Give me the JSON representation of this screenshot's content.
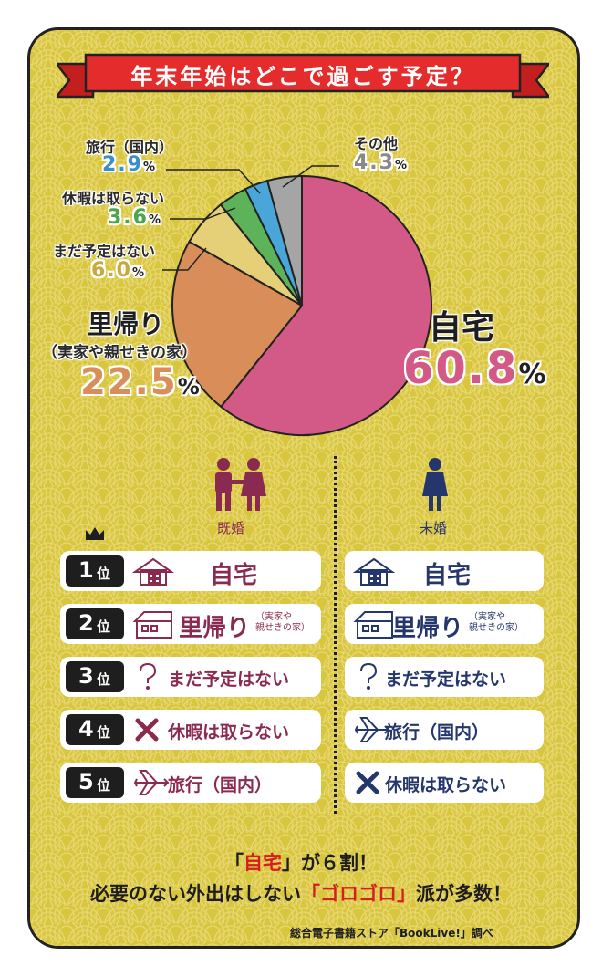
{
  "title": "年末年始はどこで過ごす予定？",
  "colors": {
    "background": "#d9c63f",
    "banner": "#e52c2c",
    "home": "#d35a87",
    "return_home": "#d98e5a",
    "undecided": "#e5cf77",
    "no_vacation": "#5cb35a",
    "domestic_travel": "#4aa6d8",
    "other": "#a5a5a5",
    "married": "#8b2a50",
    "single": "#24366b",
    "accent_red": "#d61e1e"
  },
  "chart_data": {
    "type": "pie",
    "title": "年末年始はどこで過ごす予定？",
    "unit": "%",
    "slices": [
      {
        "label": "自宅",
        "value": 60.8,
        "color": "#d35a87"
      },
      {
        "label": "里帰り（実家や親せきの家）",
        "value": 22.5,
        "color": "#d98e5a"
      },
      {
        "label": "まだ予定はない",
        "value": 6.0,
        "color": "#e5cf77"
      },
      {
        "label": "休暇は取らない",
        "value": 3.6,
        "color": "#5cb35a"
      },
      {
        "label": "旅行（国内）",
        "value": 2.9,
        "color": "#4aa6d8"
      },
      {
        "label": "その他",
        "value": 4.3,
        "color": "#a5a5a5"
      }
    ]
  },
  "labels": {
    "home": {
      "name": "自宅",
      "value": "60.8",
      "pct": "%"
    },
    "return_home": {
      "name": "里帰り",
      "sub": "（実家や親せきの家）",
      "value": "22.5",
      "pct": "%"
    },
    "undecided": {
      "name": "まだ予定はない",
      "value": "6.0",
      "pct": "%"
    },
    "no_vacation": {
      "name": "休暇は取らない",
      "value": "3.6",
      "pct": "%"
    },
    "domestic_travel": {
      "name": "旅行（国内）",
      "value": "2.9",
      "pct": "%"
    },
    "other": {
      "name": "その他",
      "value": "4.3",
      "pct": "%"
    }
  },
  "groups": {
    "married": "既婚",
    "single": "未婚"
  },
  "rank_suffix": "位",
  "ranking": [
    {
      "rank": "1",
      "married": "自宅",
      "married_icon": "house-icon",
      "single": "自宅",
      "single_icon": "house-icon"
    },
    {
      "rank": "2",
      "married": "里帰り",
      "married_sub": [
        "（実家や",
        "親せきの家）"
      ],
      "married_icon": "wide-house-icon",
      "single": "里帰り",
      "single_sub": [
        "（実家や",
        "親せきの家）"
      ],
      "single_icon": "wide-house-icon"
    },
    {
      "rank": "3",
      "married": "まだ予定はない",
      "married_icon": "question-icon",
      "single": "まだ予定はない",
      "single_icon": "question-icon"
    },
    {
      "rank": "4",
      "married": "休暇は取らない",
      "married_icon": "cross-icon",
      "single": "旅行（国内）",
      "single_icon": "airplane-icon"
    },
    {
      "rank": "5",
      "married": "旅行（国内）",
      "married_icon": "airplane-icon",
      "single": "休暇は取らない",
      "single_icon": "cross-icon"
    }
  ],
  "conclusion": {
    "line1": {
      "q_open": "「",
      "hl": "自宅",
      "q_close": "」",
      "rest": "が６割！"
    },
    "line2": {
      "pre": "必要のない外出はしない",
      "q_open": "「",
      "hl": "ゴロゴロ",
      "q_close": "」",
      "post": "派が多数！"
    }
  },
  "source": "総合電子書籍ストア「BookLive!」調べ"
}
